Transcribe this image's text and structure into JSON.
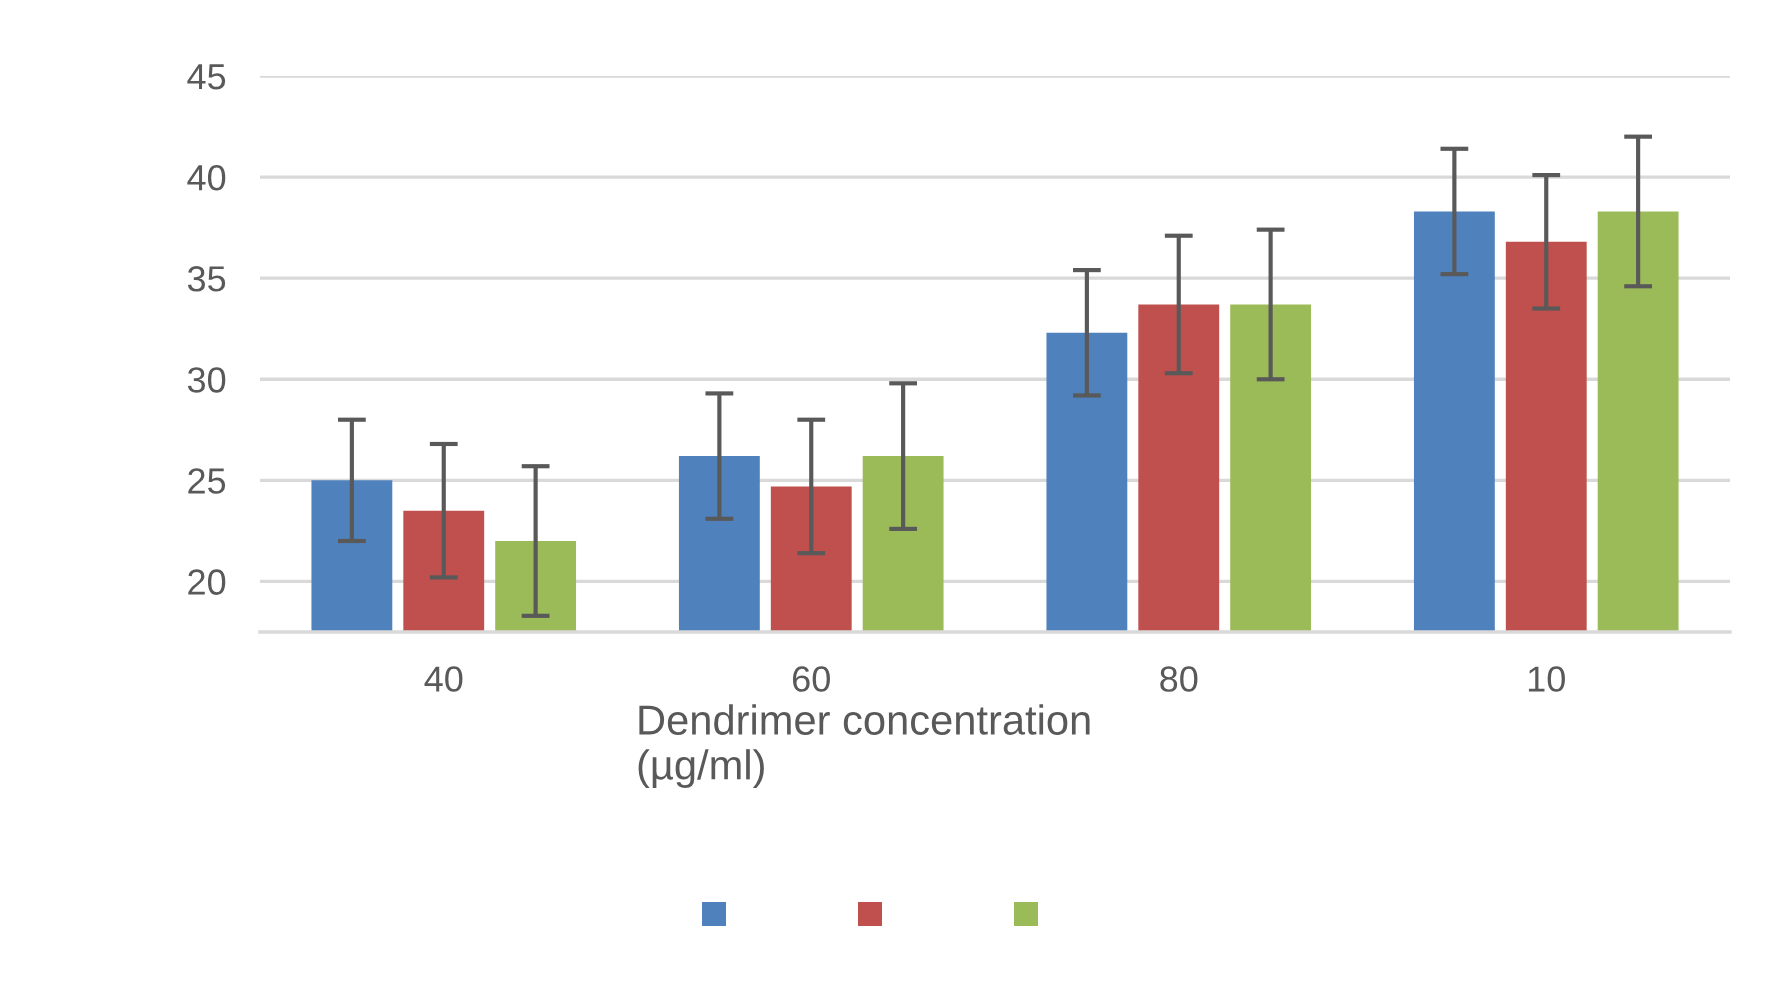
{
  "chart_data": {
    "type": "bar",
    "xlabel": "Dendrimer concentration\n(µg/ml)",
    "categories": [
      "40",
      "60",
      "80",
      "10"
    ],
    "series": [
      {
        "color": "#4f81bd",
        "values": [
          25.0,
          26.2,
          32.3,
          38.3
        ],
        "errors": [
          3.0,
          3.1,
          3.1,
          3.1
        ]
      },
      {
        "color": "#c0504d",
        "values": [
          23.5,
          24.7,
          33.7,
          36.8
        ],
        "errors": [
          3.3,
          3.3,
          3.4,
          3.3
        ]
      },
      {
        "color": "#9bbb59",
        "values": [
          22.0,
          26.2,
          33.7,
          38.3
        ],
        "errors": [
          3.7,
          3.6,
          3.7,
          3.7
        ]
      }
    ],
    "ylim": [
      17.5,
      45
    ],
    "yticks": [
      20,
      25,
      30,
      35,
      40,
      45
    ],
    "grid": "y"
  }
}
